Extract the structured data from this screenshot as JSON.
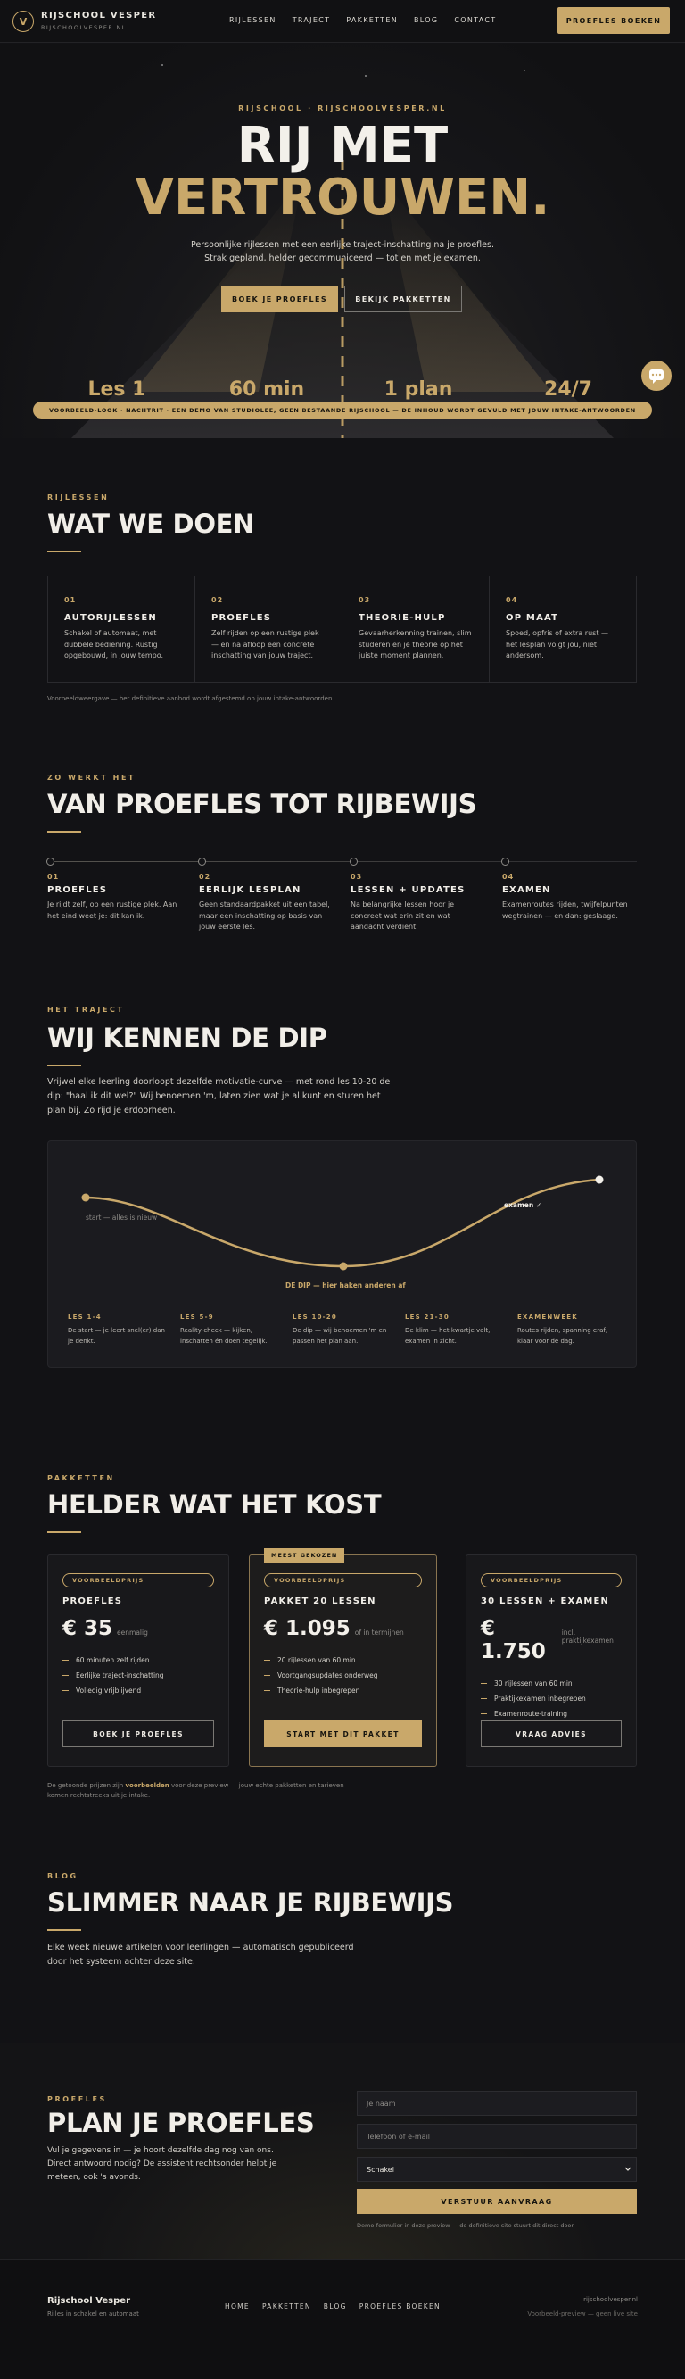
{
  "header": {
    "logo": "V",
    "brand": "RIJSCHOOL VESPER",
    "domain": "RIJSCHOOLVESPER.NL",
    "nav": [
      "RIJLESSEN",
      "TRAJECT",
      "PAKKETTEN",
      "BLOG",
      "CONTACT"
    ],
    "cta": "PROEFLES BOEKEN"
  },
  "hero": {
    "eyebrow": "RIJSCHOOL · RIJSCHOOLVESPER.NL",
    "title_line1": "RIJ MET",
    "title_line2": "VERTROUWEN.",
    "subtitle": "Persoonlijke rijlessen met een eerlijke traject-inschatting na je proefles. Strak gepland, helder gecommuniceerd — tot en met je examen.",
    "buttons": [
      "BOEK JE PROEFLES",
      "BEKIJK PAKKETTEN"
    ],
    "stats": [
      "Les 1",
      "60 min",
      "1 plan",
      "24/7"
    ],
    "banner": "VOORBEELD-LOOK · NACHTRIT · EEN DEMO VAN STUDIOLEE, GEEN BESTAANDE RIJSCHOOL — DE INHOUD WORDT GEVULD MET JOUW INTAKE-ANTWOORDEN"
  },
  "services": {
    "eyebrow": "RIJLESSEN",
    "title": "WAT WE DOEN",
    "cards": [
      {
        "number": "01",
        "title": "AUTORIJLESSEN",
        "text": "Schakel of automaat, met dubbele bediening. Rustig opgebouwd, in jouw tempo."
      },
      {
        "number": "02",
        "title": "PROEFLES",
        "text": "Zelf rijden op een rustige plek — en na afloop een concrete inschatting van jouw traject."
      },
      {
        "number": "03",
        "title": "THEORIE-HULP",
        "text": "Gevaarherkenning trainen, slim studeren en je theorie op het juiste moment plannen."
      },
      {
        "number": "04",
        "title": "OP MAAT",
        "text": "Spoed, opfris of extra rust — het lesplan volgt jou, niet andersom."
      }
    ],
    "note": "Voorbeeldweergave — het definitieve aanbod wordt afgestemd op jouw intake-antwoorden."
  },
  "steps": {
    "eyebrow": "ZO WERKT HET",
    "title": "VAN PROEFLES TOT RIJBEWIJS",
    "items": [
      {
        "number": "01",
        "title": "PROEFLES",
        "text": "Je rijdt zelf, op een rustige plek. Aan het eind weet je: dit kan ik."
      },
      {
        "number": "02",
        "title": "EERLIJK LESPLAN",
        "text": "Geen standaardpakket uit een tabel, maar een inschatting op basis van jouw eerste les."
      },
      {
        "number": "03",
        "title": "LESSEN + UPDATES",
        "text": "Na belangrijke lessen hoor je concreet wat erin zit en wat aandacht verdient."
      },
      {
        "number": "04",
        "title": "EXAMEN",
        "text": "Examenroutes rijden, twijfelpunten wegtrainen — en dan: geslaagd."
      }
    ]
  },
  "journey": {
    "eyebrow": "HET TRAJECT",
    "title": "WIJ KENNEN DE DIP",
    "text": "Vrijwel elke leerling doorloopt dezelfde motivatie-curve — met rond les 10-20 de dip: \"haal ik dit wel?\" Wij benoemen 'm, laten zien wat je al kunt en sturen het plan bij. Zo rijd je erdoorheen.",
    "chart_labels": {
      "start": "start — alles is nieuw",
      "end": "examen ✓",
      "dip": "DE DIP — hier haken anderen af"
    },
    "phases": [
      {
        "label": "LES 1-4",
        "text": "De start — je leert snel(er) dan je denkt."
      },
      {
        "label": "LES 5-9",
        "text": "Reality-check — kijken, inschatten én doen tegelijk."
      },
      {
        "label": "LES 10-20",
        "text": "De dip — wij benoemen 'm en passen het plan aan."
      },
      {
        "label": "LES 21-30",
        "text": "De klim — het kwartje valt, examen in zicht."
      },
      {
        "label": "EXAMENWEEK",
        "text": "Routes rijden, spanning eraf, klaar voor de dag."
      }
    ]
  },
  "pricing": {
    "eyebrow": "PAKKETTEN",
    "title": "HELDER WAT HET KOST",
    "cards": [
      {
        "tag": "VOORBEELDPRIJS",
        "name": "PROEFLES",
        "price": "€ 35",
        "price_note": "eenmalig",
        "features": [
          "60 minuten zelf rijden",
          "Eerlijke traject-inschatting",
          "Volledig vrijblijvend"
        ],
        "button": "BOEK JE PROEFLES"
      },
      {
        "badge": "MEEST GEKOZEN",
        "tag": "VOORBEELDPRIJS",
        "name": "PAKKET 20 LESSEN",
        "price": "€ 1.095",
        "price_note": "of in termijnen",
        "features": [
          "20 rijlessen van 60 min",
          "Voortgangsupdates onderweg",
          "Theorie-hulp inbegrepen"
        ],
        "button": "START MET DIT PAKKET"
      },
      {
        "tag": "VOORBEELDPRIJS",
        "name": "30 LESSEN + EXAMEN",
        "price": "€ 1.750",
        "price_note": "incl. praktijkexamen",
        "features": [
          "30 rijlessen van 60 min",
          "Praktijkexamen inbegrepen",
          "Examenroute-training"
        ],
        "button": "VRAAG ADVIES"
      }
    ],
    "note_before": "De getoonde prijzen zijn ",
    "note_highlight": "voorbeelden",
    "note_after": " voor deze preview — jouw echte pakketten en tarieven komen rechtstreeks uit je intake."
  },
  "blog": {
    "eyebrow": "BLOG",
    "title": "SLIMMER NAAR JE RIJBEWIJS",
    "text": "Elke week nieuwe artikelen voor leerlingen — automatisch gepubliceerd door het systeem achter deze site."
  },
  "contact": {
    "eyebrow": "PROEFLES",
    "title": "PLAN JE PROEFLES",
    "text": "Vul je gegevens in — je hoort dezelfde dag nog van ons. Direct antwoord nodig? De assistent rechtsonder helpt je meteen, ook 's avonds.",
    "form": {
      "name_placeholder": "Je naam",
      "contact_placeholder": "Telefoon of e-mail",
      "transmission": "Schakel",
      "submit": "VERSTUUR AANVRAAG",
      "note": "Demo-formulier in deze preview — de definitieve site stuurt dit direct door."
    }
  },
  "footer": {
    "name": "Rijschool Vesper",
    "tagline": "Rijles in schakel en automaat",
    "links": [
      "HOME",
      "PAKKETTEN",
      "BLOG",
      "PROEFLES BOEKEN"
    ],
    "domain": "rijschoolvesper.nl",
    "note": "Voorbeeld-preview — geen live site"
  }
}
